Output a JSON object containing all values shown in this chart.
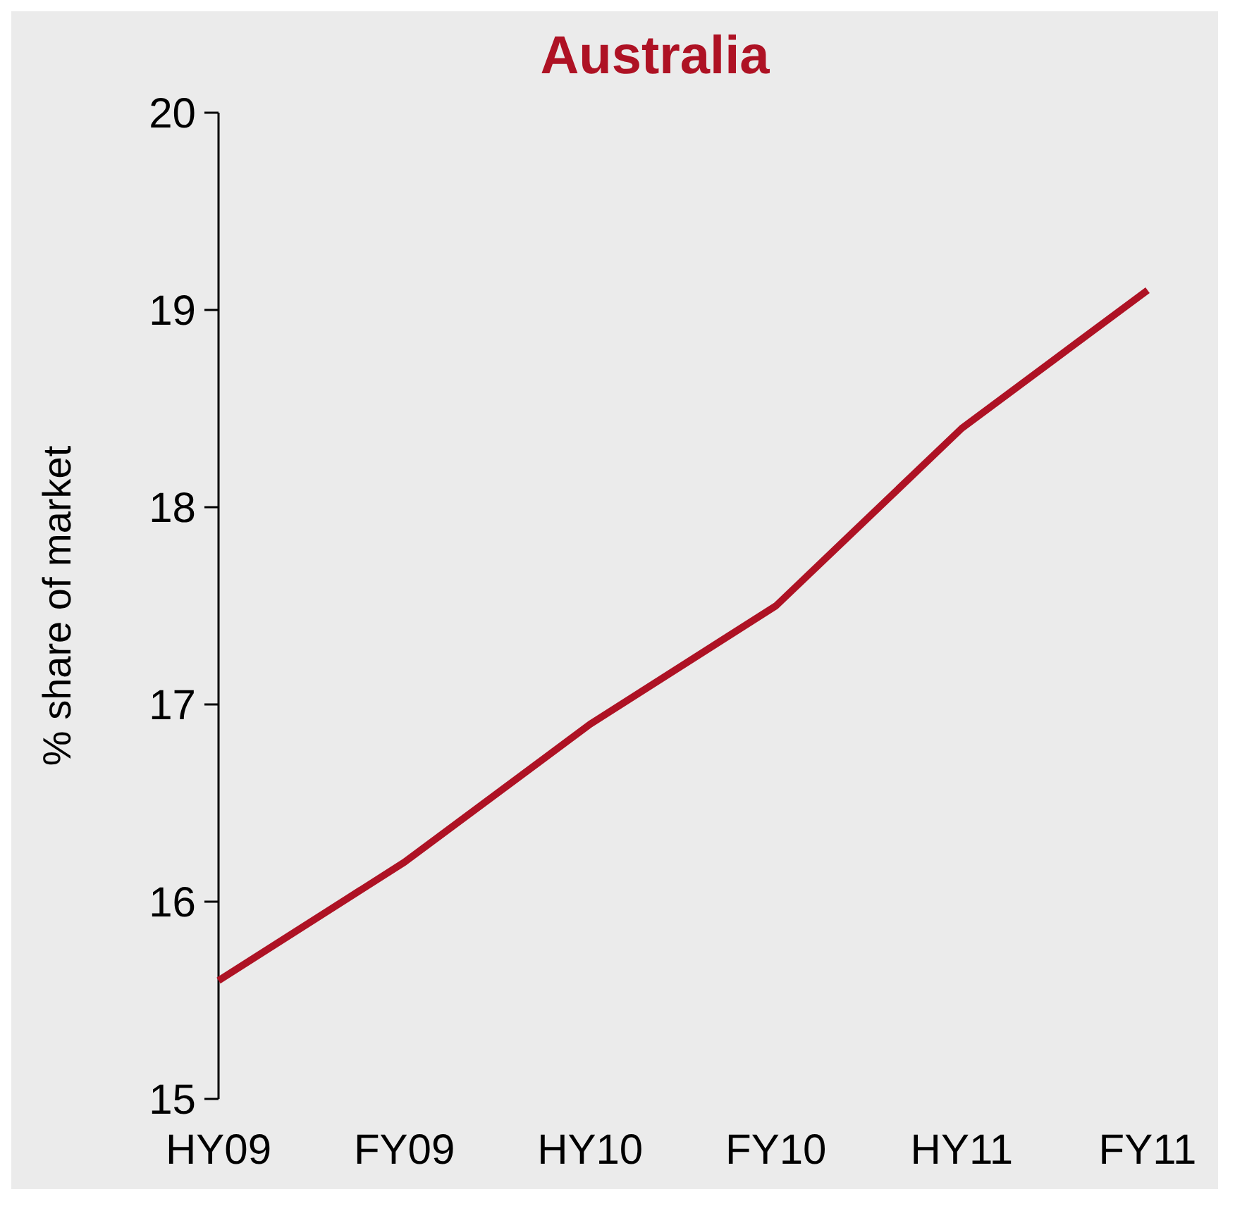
{
  "chart_data": {
    "type": "line",
    "title": "Australia",
    "ylabel": "% share of market",
    "categories": [
      "HY09",
      "FY09",
      "HY10",
      "FY10",
      "HY11",
      "FY11"
    ],
    "series": [
      {
        "color": "#ae1224",
        "values": [
          15.6,
          16.2,
          16.9,
          17.5,
          18.4,
          19.1
        ]
      }
    ],
    "ylim": [
      15,
      20
    ],
    "yticks": [
      15,
      16,
      17,
      18,
      19,
      20
    ],
    "grid": false,
    "marker": "none",
    "line_style": "solid"
  }
}
